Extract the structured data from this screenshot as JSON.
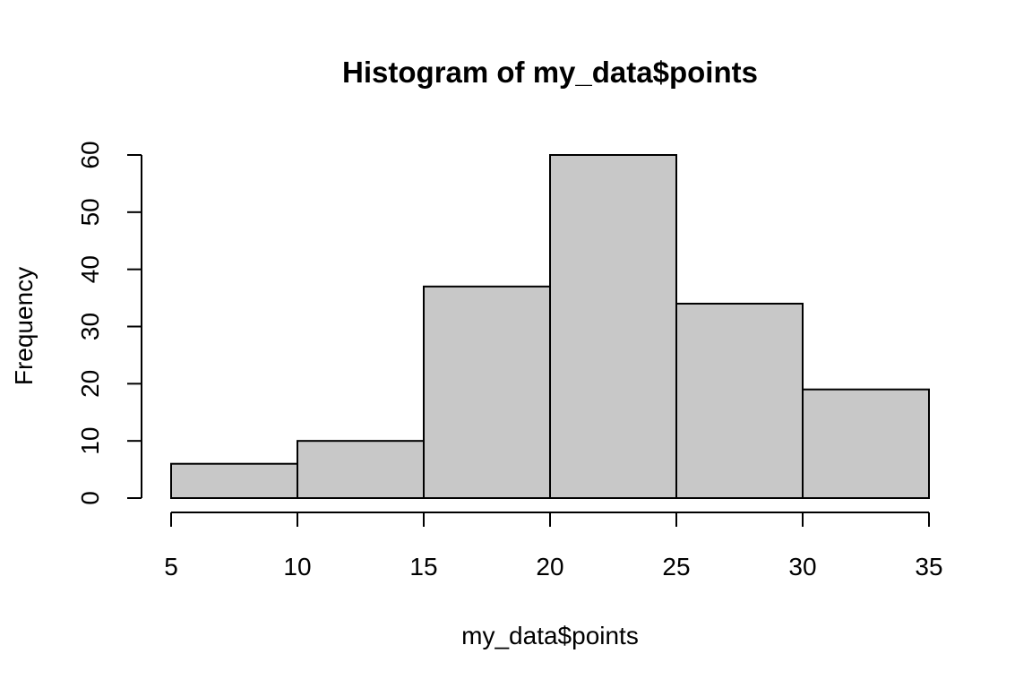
{
  "chart_data": {
    "type": "bar",
    "title": "Histogram of my_data$points",
    "xlabel": "my_data$points",
    "ylabel": "Frequency",
    "bins": [
      {
        "start": 5,
        "end": 10,
        "count": 6
      },
      {
        "start": 10,
        "end": 15,
        "count": 10
      },
      {
        "start": 15,
        "end": 20,
        "count": 37
      },
      {
        "start": 20,
        "end": 25,
        "count": 60
      },
      {
        "start": 25,
        "end": 30,
        "count": 34
      },
      {
        "start": 30,
        "end": 35,
        "count": 19
      }
    ],
    "xticks": [
      5,
      10,
      15,
      20,
      25,
      30,
      35
    ],
    "yticks": [
      0,
      10,
      20,
      30,
      40,
      50,
      60
    ],
    "xlim": [
      5,
      35
    ],
    "ylim": [
      0,
      60
    ],
    "bar_color": "#c8c8c8",
    "grid": false
  }
}
